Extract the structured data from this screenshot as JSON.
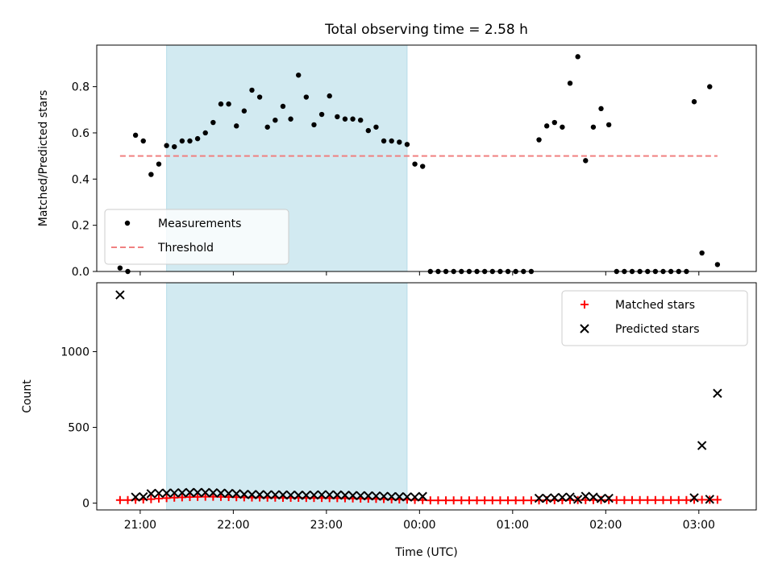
{
  "chart_data": [
    {
      "type": "scatter",
      "title": "Total observing time = 2.58 h",
      "xlabel": "",
      "ylabel": "Matched/Predicted stars",
      "xlim": [
        "20:32",
        "03:37"
      ],
      "ylim": [
        0,
        0.98
      ],
      "yticks": [
        0.0,
        0.2,
        0.4,
        0.6,
        0.8
      ],
      "ytick_labels": [
        "0.0",
        "0.2",
        "0.4",
        "0.6",
        "0.8"
      ],
      "shaded_span": [
        "21:17",
        "23:52"
      ],
      "shaded_color": "#add8e6",
      "legend_position": "lower-left",
      "series": [
        {
          "name": "Measurements",
          "marker": "dot",
          "color": "#000000",
          "points": [
            [
              "20:47",
              0.015
            ],
            [
              "20:52",
              0.0
            ],
            [
              "20:57",
              0.59
            ],
            [
              "21:02",
              0.565
            ],
            [
              "21:07",
              0.42
            ],
            [
              "21:12",
              0.465
            ],
            [
              "21:17",
              0.545
            ],
            [
              "21:22",
              0.54
            ],
            [
              "21:27",
              0.565
            ],
            [
              "21:32",
              0.565
            ],
            [
              "21:37",
              0.575
            ],
            [
              "21:42",
              0.6
            ],
            [
              "21:47",
              0.645
            ],
            [
              "21:52",
              0.725
            ],
            [
              "21:57",
              0.725
            ],
            [
              "22:02",
              0.63
            ],
            [
              "22:07",
              0.695
            ],
            [
              "22:12",
              0.785
            ],
            [
              "22:17",
              0.755
            ],
            [
              "22:22",
              0.625
            ],
            [
              "22:27",
              0.655
            ],
            [
              "22:32",
              0.715
            ],
            [
              "22:37",
              0.66
            ],
            [
              "22:42",
              0.85
            ],
            [
              "22:47",
              0.755
            ],
            [
              "22:52",
              0.635
            ],
            [
              "22:57",
              0.68
            ],
            [
              "23:02",
              0.76
            ],
            [
              "23:07",
              0.67
            ],
            [
              "23:12",
              0.66
            ],
            [
              "23:17",
              0.66
            ],
            [
              "23:22",
              0.655
            ],
            [
              "23:27",
              0.61
            ],
            [
              "23:32",
              0.625
            ],
            [
              "23:37",
              0.565
            ],
            [
              "23:42",
              0.565
            ],
            [
              "23:47",
              0.56
            ],
            [
              "23:52",
              0.55
            ],
            [
              "23:57",
              0.465
            ],
            [
              "00:02",
              0.455
            ],
            [
              "00:07",
              0.0
            ],
            [
              "00:12",
              0.0
            ],
            [
              "00:17",
              0.0
            ],
            [
              "00:22",
              0.0
            ],
            [
              "00:27",
              0.0
            ],
            [
              "00:32",
              0.0
            ],
            [
              "00:37",
              0.0
            ],
            [
              "00:42",
              0.0
            ],
            [
              "00:47",
              0.0
            ],
            [
              "00:52",
              0.0
            ],
            [
              "00:57",
              0.0
            ],
            [
              "01:02",
              0.0
            ],
            [
              "01:07",
              0.0
            ],
            [
              "01:12",
              0.0
            ],
            [
              "01:17",
              0.57
            ],
            [
              "01:22",
              0.63
            ],
            [
              "01:27",
              0.645
            ],
            [
              "01:32",
              0.625
            ],
            [
              "01:37",
              0.815
            ],
            [
              "01:42",
              0.93
            ],
            [
              "01:47",
              0.48
            ],
            [
              "01:52",
              0.625
            ],
            [
              "01:57",
              0.705
            ],
            [
              "02:02",
              0.635
            ],
            [
              "02:07",
              0.0
            ],
            [
              "02:12",
              0.0
            ],
            [
              "02:17",
              0.0
            ],
            [
              "02:22",
              0.0
            ],
            [
              "02:27",
              0.0
            ],
            [
              "02:32",
              0.0
            ],
            [
              "02:37",
              0.0
            ],
            [
              "02:42",
              0.0
            ],
            [
              "02:47",
              0.0
            ],
            [
              "02:52",
              0.0
            ],
            [
              "02:57",
              0.735
            ],
            [
              "03:02",
              0.08
            ],
            [
              "03:07",
              0.8
            ],
            [
              "03:12",
              0.03
            ]
          ]
        },
        {
          "name": "Threshold",
          "marker": "dashed-line",
          "color": "#f08080",
          "points": [
            [
              "20:47",
              0.5
            ],
            [
              "03:12",
              0.5
            ]
          ]
        }
      ]
    },
    {
      "type": "scatter",
      "title": "",
      "xlabel": "Time (UTC)",
      "ylabel": "Count",
      "xlim": [
        "20:32",
        "03:37"
      ],
      "ylim": [
        -45,
        1455
      ],
      "yticks": [
        0,
        500,
        1000
      ],
      "ytick_labels": [
        "0",
        "500",
        "1000"
      ],
      "xticks": [
        "21:00",
        "22:00",
        "23:00",
        "00:00",
        "01:00",
        "02:00",
        "03:00"
      ],
      "xtick_labels": [
        "21:00",
        "22:00",
        "23:00",
        "00:00",
        "01:00",
        "02:00",
        "03:00"
      ],
      "shaded_span": [
        "21:17",
        "23:52"
      ],
      "shaded_color": "#add8e6",
      "legend_position": "top-right",
      "series": [
        {
          "name": "Matched stars",
          "marker": "plus",
          "color": "#ff0000",
          "points": [
            [
              "20:47",
              20
            ],
            [
              "20:52",
              20
            ],
            [
              "20:57",
              22
            ],
            [
              "21:02",
              24
            ],
            [
              "21:07",
              26
            ],
            [
              "21:12",
              30
            ],
            [
              "21:17",
              33
            ],
            [
              "21:22",
              36
            ],
            [
              "21:27",
              38
            ],
            [
              "21:32",
              40
            ],
            [
              "21:37",
              41
            ],
            [
              "21:42",
              42
            ],
            [
              "21:47",
              42
            ],
            [
              "21:52",
              41
            ],
            [
              "21:57",
              40
            ],
            [
              "22:02",
              39
            ],
            [
              "22:07",
              38
            ],
            [
              "22:12",
              37
            ],
            [
              "22:17",
              37
            ],
            [
              "22:22",
              36
            ],
            [
              "22:27",
              36
            ],
            [
              "22:32",
              35
            ],
            [
              "22:37",
              35
            ],
            [
              "22:42",
              35
            ],
            [
              "22:47",
              34
            ],
            [
              "22:52",
              34
            ],
            [
              "22:57",
              34
            ],
            [
              "23:02",
              33
            ],
            [
              "23:07",
              33
            ],
            [
              "23:12",
              32
            ],
            [
              "23:17",
              31
            ],
            [
              "23:22",
              30
            ],
            [
              "23:27",
              29
            ],
            [
              "23:32",
              28
            ],
            [
              "23:37",
              27
            ],
            [
              "23:42",
              25
            ],
            [
              "23:47",
              24
            ],
            [
              "23:52",
              23
            ],
            [
              "23:57",
              21
            ],
            [
              "00:02",
              20
            ],
            [
              "00:07",
              18
            ],
            [
              "00:12",
              18
            ],
            [
              "00:17",
              18
            ],
            [
              "00:22",
              18
            ],
            [
              "00:27",
              18
            ],
            [
              "00:32",
              18
            ],
            [
              "00:37",
              18
            ],
            [
              "00:42",
              18
            ],
            [
              "00:47",
              18
            ],
            [
              "00:52",
              18
            ],
            [
              "00:57",
              18
            ],
            [
              "01:02",
              18
            ],
            [
              "01:07",
              18
            ],
            [
              "01:12",
              18
            ],
            [
              "01:17",
              18
            ],
            [
              "01:22",
              19
            ],
            [
              "01:27",
              19
            ],
            [
              "01:32",
              19
            ],
            [
              "01:37",
              20
            ],
            [
              "01:42",
              20
            ],
            [
              "01:47",
              20
            ],
            [
              "01:52",
              20
            ],
            [
              "01:57",
              20
            ],
            [
              "02:02",
              20
            ],
            [
              "02:07",
              20
            ],
            [
              "02:12",
              20
            ],
            [
              "02:17",
              20
            ],
            [
              "02:22",
              20
            ],
            [
              "02:27",
              20
            ],
            [
              "02:32",
              20
            ],
            [
              "02:37",
              20
            ],
            [
              "02:42",
              20
            ],
            [
              "02:47",
              20
            ],
            [
              "02:52",
              20
            ],
            [
              "02:57",
              22
            ],
            [
              "03:02",
              22
            ],
            [
              "03:07",
              22
            ],
            [
              "03:12",
              22
            ]
          ]
        },
        {
          "name": "Predicted stars",
          "marker": "x",
          "color": "#000000",
          "points": [
            [
              "20:47",
              1375
            ],
            [
              "20:57",
              40
            ],
            [
              "21:02",
              42
            ],
            [
              "21:07",
              62
            ],
            [
              "21:12",
              65
            ],
            [
              "21:17",
              66
            ],
            [
              "21:22",
              67
            ],
            [
              "21:27",
              68
            ],
            [
              "21:32",
              70
            ],
            [
              "21:37",
              70
            ],
            [
              "21:42",
              70
            ],
            [
              "21:47",
              68
            ],
            [
              "21:52",
              66
            ],
            [
              "21:57",
              64
            ],
            [
              "22:02",
              62
            ],
            [
              "22:07",
              58
            ],
            [
              "22:12",
              56
            ],
            [
              "22:17",
              56
            ],
            [
              "22:22",
              55
            ],
            [
              "22:27",
              55
            ],
            [
              "22:32",
              54
            ],
            [
              "22:37",
              53
            ],
            [
              "22:42",
              52
            ],
            [
              "22:47",
              52
            ],
            [
              "22:52",
              53
            ],
            [
              "22:57",
              55
            ],
            [
              "23:02",
              55
            ],
            [
              "23:07",
              54
            ],
            [
              "23:12",
              52
            ],
            [
              "23:17",
              50
            ],
            [
              "23:22",
              49
            ],
            [
              "23:27",
              48
            ],
            [
              "23:32",
              47
            ],
            [
              "23:37",
              45
            ],
            [
              "23:42",
              43
            ],
            [
              "23:47",
              42
            ],
            [
              "23:52",
              41
            ],
            [
              "23:57",
              40
            ],
            [
              "00:02",
              44
            ],
            [
              "01:17",
              32
            ],
            [
              "01:22",
              32
            ],
            [
              "01:27",
              35
            ],
            [
              "01:32",
              38
            ],
            [
              "01:37",
              40
            ],
            [
              "01:42",
              25
            ],
            [
              "01:47",
              45
            ],
            [
              "01:52",
              40
            ],
            [
              "01:57",
              30
            ],
            [
              "02:02",
              32
            ],
            [
              "02:57",
              35
            ],
            [
              "03:02",
              380
            ],
            [
              "03:07",
              25
            ],
            [
              "03:12",
              725
            ]
          ]
        }
      ]
    }
  ]
}
